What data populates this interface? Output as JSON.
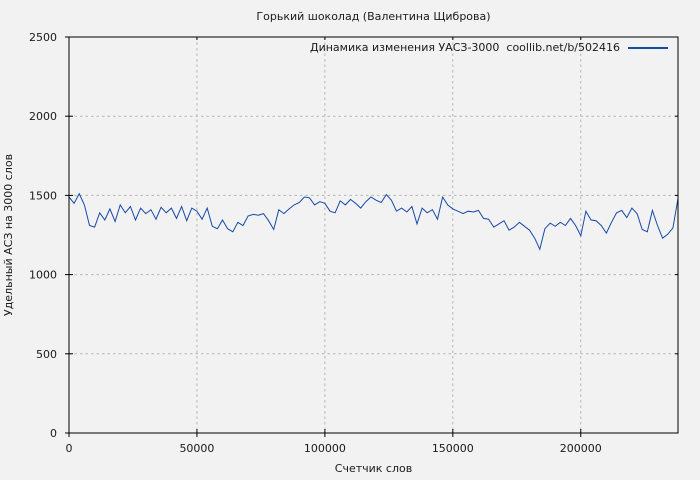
{
  "title": "Горький шоколад (Валентина Щиброва)",
  "legend": {
    "label": "Динамика изменения УАСЗ-3000  coollib.net/b/502416"
  },
  "axes": {
    "x_label": "Счетчик слов",
    "y_label": "Удельный АСЗ на 3000 слов"
  },
  "colors": {
    "background": "#f2f2f2",
    "plot_border": "#000000",
    "grid": "#b5b5b5",
    "series_line": "#1649a8",
    "text": "#1a1a1a"
  },
  "chart_data": {
    "type": "line",
    "title": "Горький шоколад (Валентина Щиброва)",
    "xlabel": "Счетчик слов",
    "ylabel": "Удельный АСЗ на 3000 слов",
    "xlim": [
      0,
      238000
    ],
    "ylim": [
      0,
      2500
    ],
    "xticks": [
      0,
      50000,
      100000,
      150000,
      200000
    ],
    "xtick_labels": [
      "0",
      "50000",
      "100000",
      "150000",
      "200000"
    ],
    "yticks": [
      0,
      500,
      1000,
      1500,
      2000,
      2500
    ],
    "ytick_labels": [
      "0",
      "500",
      "1000",
      "1500",
      "2000",
      "2500"
    ],
    "grid": true,
    "grid_style": "dashed",
    "legend_position": "top-right",
    "series": [
      {
        "name": "Динамика изменения УАСЗ-3000  coollib.net/b/502416",
        "color": "#1649a8",
        "x_start": 0,
        "x_step": 2000,
        "values": [
          1490,
          1450,
          1510,
          1440,
          1310,
          1300,
          1390,
          1345,
          1415,
          1335,
          1440,
          1390,
          1430,
          1345,
          1420,
          1385,
          1410,
          1350,
          1425,
          1390,
          1420,
          1355,
          1430,
          1340,
          1420,
          1400,
          1350,
          1420,
          1305,
          1290,
          1345,
          1290,
          1270,
          1330,
          1310,
          1370,
          1380,
          1375,
          1385,
          1340,
          1285,
          1410,
          1385,
          1415,
          1440,
          1455,
          1490,
          1485,
          1440,
          1460,
          1450,
          1400,
          1390,
          1465,
          1440,
          1475,
          1450,
          1420,
          1460,
          1490,
          1470,
          1455,
          1505,
          1470,
          1400,
          1420,
          1395,
          1430,
          1320,
          1420,
          1390,
          1410,
          1350,
          1490,
          1440,
          1415,
          1400,
          1385,
          1400,
          1395,
          1405,
          1355,
          1350,
          1300,
          1320,
          1340,
          1280,
          1300,
          1330,
          1305,
          1280,
          1230,
          1160,
          1290,
          1325,
          1305,
          1330,
          1310,
          1355,
          1310,
          1245,
          1400,
          1345,
          1340,
          1310,
          1262,
          1330,
          1390,
          1405,
          1360,
          1420,
          1385,
          1285,
          1270,
          1405,
          1310,
          1230,
          1255,
          1295,
          1480
        ]
      }
    ]
  }
}
